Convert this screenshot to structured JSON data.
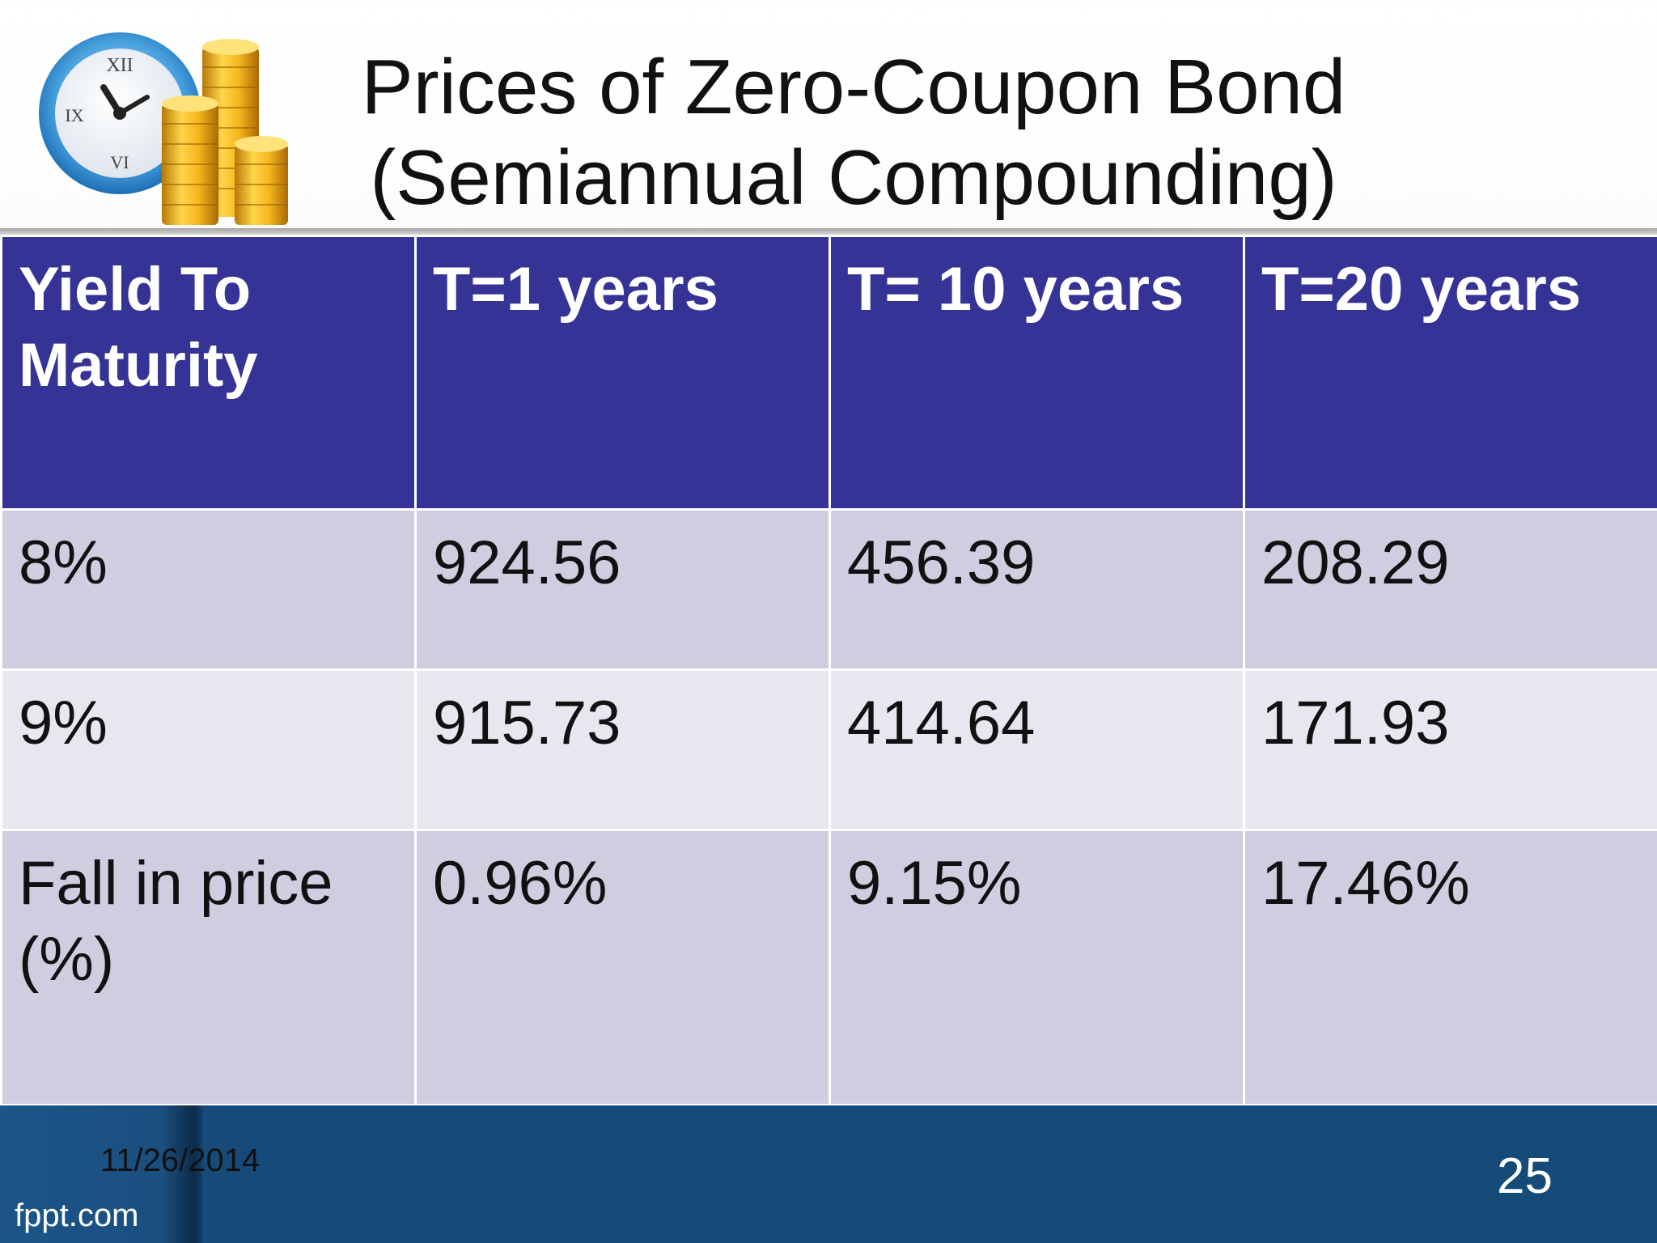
{
  "slide": {
    "title_lines": [
      "Prices of Zero-Coupon Bond",
      "(Semiannual Compounding)"
    ],
    "logo_icon": "clock-with-coin-stacks-icon"
  },
  "table": {
    "headers": [
      "Yield To Maturity",
      "T=1 years",
      "T= 10 years",
      "T=20 years"
    ],
    "rows": [
      [
        "8%",
        "924.56",
        "456.39",
        "208.29"
      ],
      [
        "9%",
        "915.73",
        "414.64",
        "171.93"
      ],
      [
        "Fall in price (%)",
        "0.96%",
        "9.15%",
        "17.46%"
      ]
    ]
  },
  "footer": {
    "date": "11/26/2014",
    "brand": "fppt.com",
    "page_number": "25"
  },
  "colors": {
    "header_bg": "#353396",
    "row_dark": "#cfcde0",
    "row_light": "#e8e7ef",
    "footer_bg": "#154a79"
  }
}
